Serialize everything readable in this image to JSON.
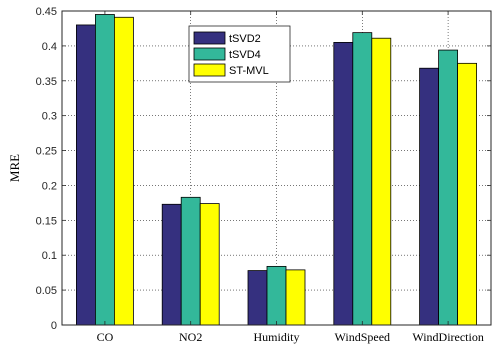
{
  "chart_data": {
    "type": "bar",
    "categories": [
      "CO",
      "NO2",
      "Humidity",
      "WindSpeed",
      "WindDirection"
    ],
    "series": [
      {
        "name": "tSVD2",
        "color": "#35307F",
        "values": [
          0.43,
          0.173,
          0.078,
          0.405,
          0.368
        ]
      },
      {
        "name": "tSVD4",
        "color": "#33B89A",
        "values": [
          0.445,
          0.183,
          0.084,
          0.419,
          0.394
        ]
      },
      {
        "name": "ST-MVL",
        "color": "#FFFF00",
        "values": [
          0.441,
          0.174,
          0.079,
          0.411,
          0.375
        ]
      }
    ],
    "title": "",
    "xlabel": "",
    "ylabel": "MRE",
    "ylim": [
      0,
      0.45
    ],
    "yticks": [
      "0",
      "0.05",
      "0.1",
      "0.15",
      "0.2",
      "0.25",
      "0.3",
      "0.35",
      "0.4",
      "0.45"
    ],
    "grid": true,
    "legend_position": "top-center"
  }
}
